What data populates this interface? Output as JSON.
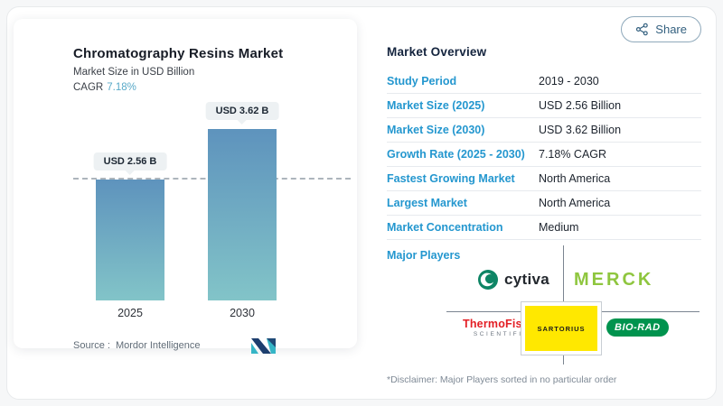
{
  "share": {
    "label": "Share"
  },
  "left_card": {
    "title": "Chromatography Resins Market",
    "subtitle": "Market Size in USD Billion",
    "cagr_label": "CAGR",
    "cagr_value": "7.18%",
    "source_label": "Source :",
    "source_value": "Mordor Intelligence"
  },
  "chart_data": {
    "type": "bar",
    "title": "Chromatography Resins Market",
    "ylabel": "Market Size in USD Billion",
    "categories": [
      "2025",
      "2030"
    ],
    "values": [
      2.56,
      3.62
    ],
    "value_labels": [
      "USD 2.56 B",
      "USD 3.62 B"
    ],
    "dashline_at_value": 2.56,
    "bar_gradient_top": "#5e93bd",
    "bar_gradient_bottom": "#82c4c8",
    "grid": false,
    "legend": false
  },
  "overview": {
    "heading": "Market Overview",
    "rows": [
      {
        "label": "Study Period",
        "value": "2019 - 2030"
      },
      {
        "label": "Market Size (2025)",
        "value": "USD 2.56 Billion"
      },
      {
        "label": "Market Size (2030)",
        "value": "USD 3.62 Billion"
      },
      {
        "label": "Growth Rate (2025 - 2030)",
        "value": "7.18% CAGR"
      },
      {
        "label": "Fastest Growing Market",
        "value": "North America"
      },
      {
        "label": "Largest Market",
        "value": "North America"
      },
      {
        "label": "Market Concentration",
        "value": "Medium"
      }
    ],
    "major_players_label": "Major Players",
    "players": {
      "cytiva": "cytiva",
      "merck": "MERCK",
      "thermo_line1": "ThermoFisher",
      "thermo_line2": "SCIENTIFIC",
      "sartorius": "SARTORIUS",
      "biorad": "BIO-RAD"
    },
    "disclaimer": "*Disclaimer: Major Players sorted in no particular order"
  },
  "colors": {
    "label_blue": "#2497cf",
    "cagr_teal": "#58a9c8",
    "heading_navy": "#14243e",
    "share_slate": "#33607f",
    "cytiva_green": "#0e8565",
    "merck_green": "#8fc63f",
    "thermo_red": "#e31e24",
    "biorad_green": "#00934e",
    "sartorius_yellow": "#ffe800",
    "mi_navy": "#1d3e6e",
    "mi_teal": "#35b5c6"
  }
}
